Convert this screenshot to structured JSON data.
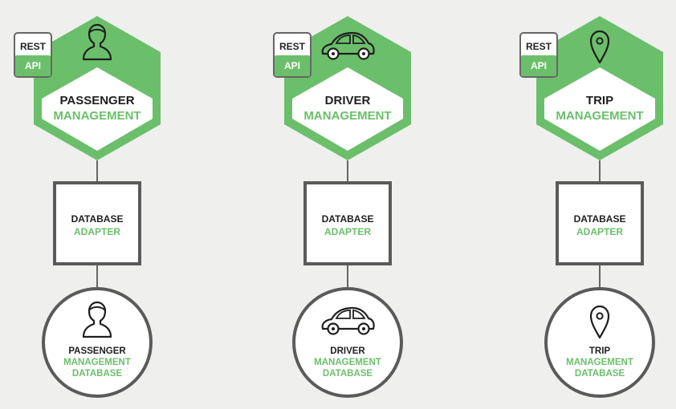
{
  "colors": {
    "background": "#efefee",
    "accent_green": "#6bbf6b",
    "border_gray": "#5a5a5a",
    "text_dark": "#1f1f1f"
  },
  "services": [
    {
      "icon": "person-icon",
      "rest_api": {
        "line1": "REST",
        "line2": "API"
      },
      "service": {
        "line1": "PASSENGER",
        "line2": "MANAGEMENT"
      },
      "adapter": {
        "line1": "DATABASE",
        "line2": "ADAPTER"
      },
      "database": {
        "line1": "PASSENGER",
        "line2": "MANAGEMENT",
        "line3": "DATABASE"
      }
    },
    {
      "icon": "car-icon",
      "rest_api": {
        "line1": "REST",
        "line2": "API"
      },
      "service": {
        "line1": "DRIVER",
        "line2": "MANAGEMENT"
      },
      "adapter": {
        "line1": "DATABASE",
        "line2": "ADAPTER"
      },
      "database": {
        "line1": "DRIVER",
        "line2": "MANAGEMENT",
        "line3": "DATABASE"
      }
    },
    {
      "icon": "map-pin-icon",
      "rest_api": {
        "line1": "REST",
        "line2": "API"
      },
      "service": {
        "line1": "TRIP",
        "line2": "MANAGEMENT"
      },
      "adapter": {
        "line1": "DATABASE",
        "line2": "ADAPTER"
      },
      "database": {
        "line1": "TRIP",
        "line2": "MANAGEMENT",
        "line3": "DATABASE"
      }
    }
  ]
}
